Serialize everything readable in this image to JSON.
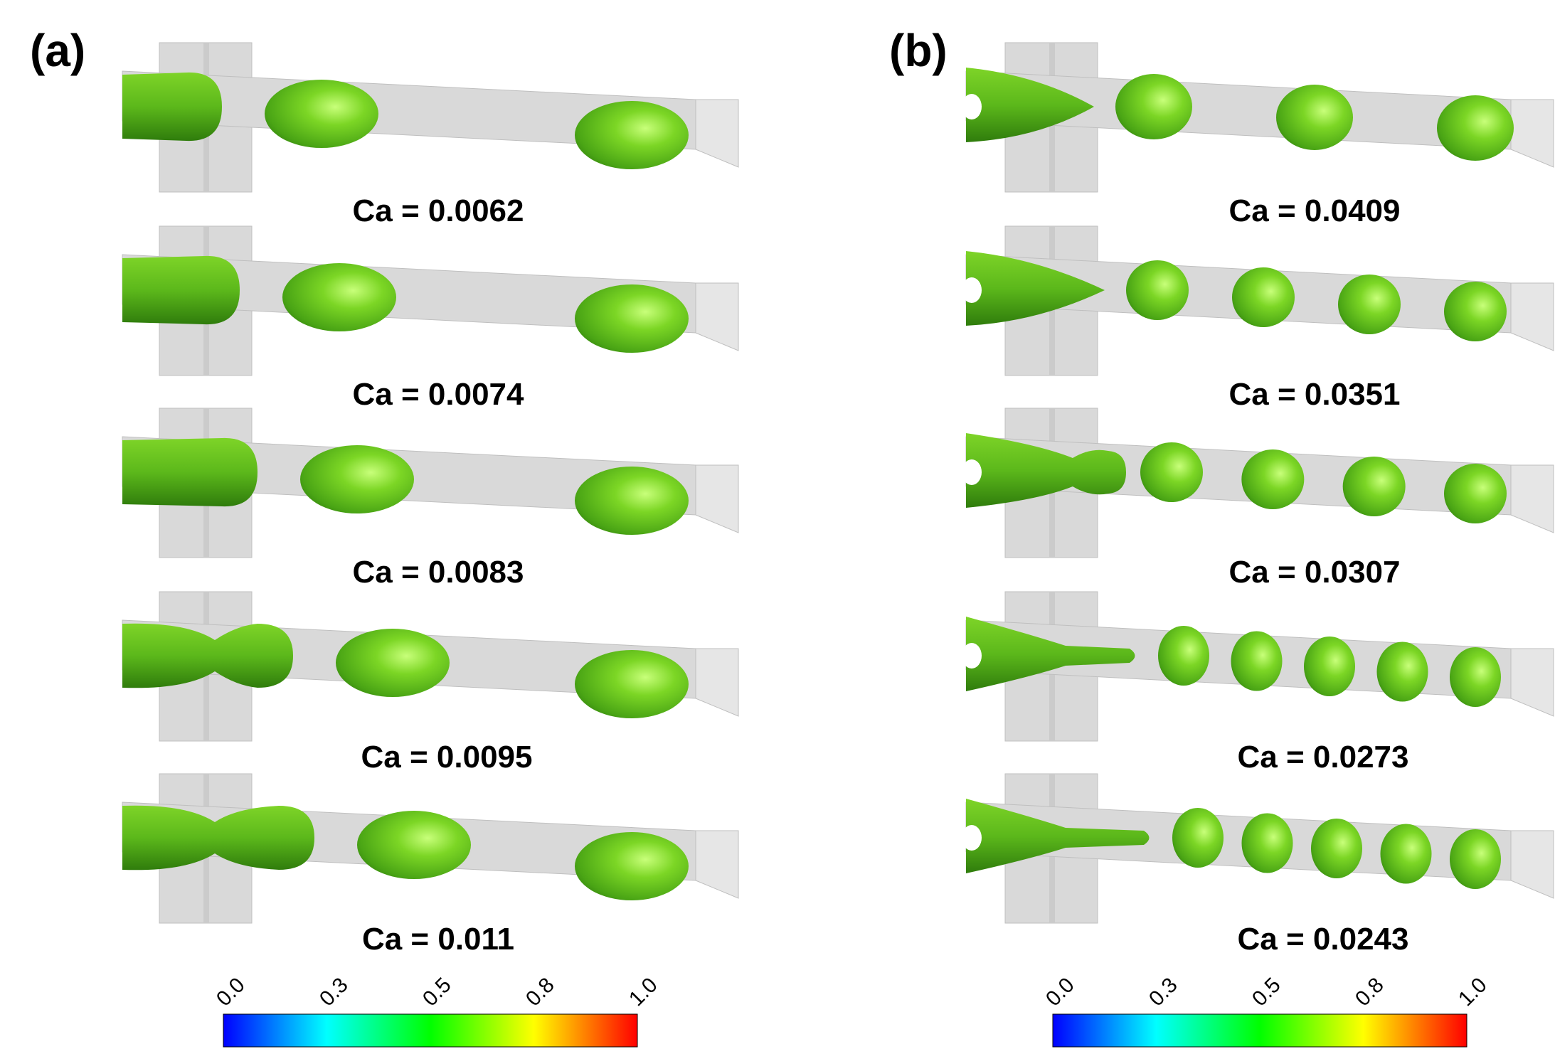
{
  "panels": [
    {
      "label": "(a)",
      "rows": [
        {
          "ca": "Ca = 0.0062",
          "neck": "plug",
          "drops": 2
        },
        {
          "ca": "Ca = 0.0074",
          "neck": "plug",
          "drops": 2
        },
        {
          "ca": "Ca = 0.0083",
          "neck": "plug",
          "drops": 2
        },
        {
          "ca": "Ca = 0.0095",
          "neck": "neck",
          "drops": 2
        },
        {
          "ca": "Ca = 0.011",
          "neck": "neck",
          "drops": 2
        }
      ],
      "colorbar": {
        "ticks": [
          "0.0",
          "0.3",
          "0.5",
          "0.8",
          "1.0"
        ]
      }
    },
    {
      "label": "(b)",
      "rows": [
        {
          "ca": "Ca = 0.0409",
          "neck": "cone",
          "drops": 3
        },
        {
          "ca": "Ca = 0.0351",
          "neck": "cone",
          "drops": 4
        },
        {
          "ca": "Ca = 0.0307",
          "neck": "bulb",
          "drops": 4
        },
        {
          "ca": "Ca = 0.0273",
          "neck": "thread",
          "drops": 5
        },
        {
          "ca": "Ca = 0.0243",
          "neck": "thread",
          "drops": 5
        }
      ],
      "colorbar": {
        "ticks": [
          "0.0",
          "0.3",
          "0.5",
          "0.8",
          "1.0"
        ]
      }
    }
  ],
  "colors": {
    "channel": "#d9d9d9",
    "channel_edge": "#bfbfbf",
    "droplet": "#66cc1a",
    "droplet_dark": "#2f8a0f",
    "droplet_light": "#b4f26a"
  }
}
